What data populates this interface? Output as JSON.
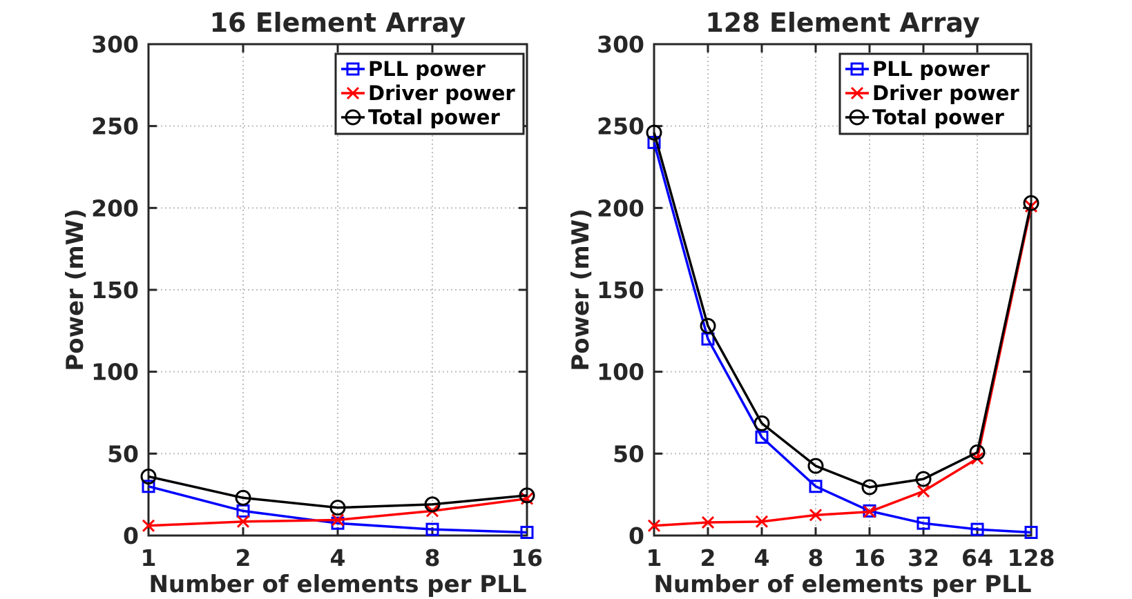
{
  "chart_data": [
    {
      "type": "line",
      "title": "16 Element Array",
      "xlabel": "Number of elements per PLL",
      "ylabel": "Power (mW)",
      "categories": [
        "1",
        "2",
        "4",
        "8",
        "16"
      ],
      "ylim": [
        0,
        300
      ],
      "yticks": [
        "0",
        "50",
        "100",
        "150",
        "200",
        "250",
        "300"
      ],
      "grid": true,
      "legend_position": "top-right",
      "series": [
        {
          "name": "PLL power",
          "color": "#0000ff",
          "marker": "square",
          "values": [
            30,
            15,
            7.5,
            3.75,
            1.9
          ]
        },
        {
          "name": "Driver power",
          "color": "#ff0000",
          "marker": "x",
          "values": [
            6,
            8.5,
            9.5,
            15,
            22.5
          ]
        },
        {
          "name": "Total power",
          "color": "#000000",
          "marker": "circle",
          "values": [
            36,
            23,
            17,
            19,
            24.5
          ]
        }
      ]
    },
    {
      "type": "line",
      "title": "128 Element Array",
      "xlabel": "Number of elements per PLL",
      "ylabel": "Power (mW)",
      "categories": [
        "1",
        "2",
        "4",
        "8",
        "16",
        "32",
        "64",
        "128"
      ],
      "ylim": [
        0,
        300
      ],
      "yticks": [
        "0",
        "50",
        "100",
        "150",
        "200",
        "250",
        "300"
      ],
      "grid": true,
      "legend_position": "top-right",
      "series": [
        {
          "name": "PLL power",
          "color": "#0000ff",
          "marker": "square",
          "values": [
            240,
            120,
            60,
            30,
            15,
            7.5,
            3.75,
            1.9
          ]
        },
        {
          "name": "Driver power",
          "color": "#ff0000",
          "marker": "x",
          "values": [
            6,
            8,
            8.5,
            12.5,
            14.5,
            27,
            47,
            201
          ]
        },
        {
          "name": "Total power",
          "color": "#000000",
          "marker": "circle",
          "values": [
            246,
            128,
            68.5,
            42.5,
            29.5,
            34.5,
            50.75,
            203
          ]
        }
      ]
    }
  ]
}
